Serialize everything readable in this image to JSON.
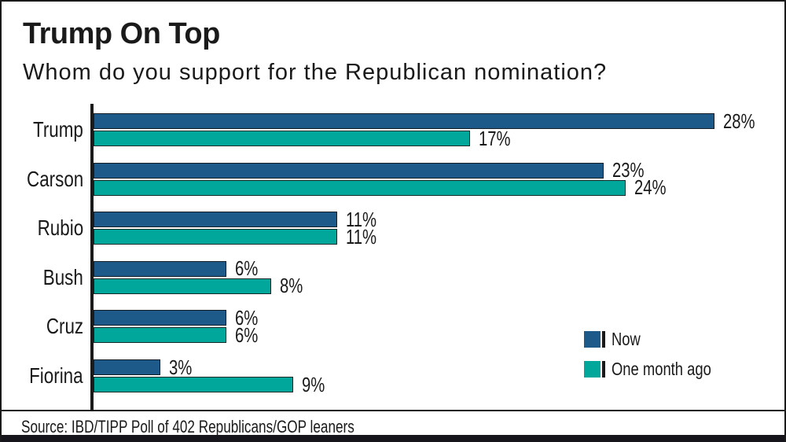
{
  "header": {
    "title": "Trump On Top",
    "subtitle": "Whom do you support for the Republican nomination?"
  },
  "source": "Source: IBD/TIPP Poll of 402 Republicans/GOP leaners",
  "colors": {
    "now": "#1d5a8a",
    "one_month_ago": "#00a79a",
    "text": "#1a1a1a",
    "frame": "#1a1a1a",
    "bottom_bar": "#15151b"
  },
  "chart_data": {
    "type": "bar",
    "orientation": "horizontal",
    "title": "Trump On Top",
    "subtitle": "Whom do you support for the Republican nomination?",
    "categories": [
      "Trump",
      "Carson",
      "Rubio",
      "Bush",
      "Cruz",
      "Fiorina"
    ],
    "series": [
      {
        "name": "Now",
        "color": "#1d5a8a",
        "values": [
          28,
          23,
          11,
          6,
          6,
          3
        ]
      },
      {
        "name": "One month ago",
        "color": "#00a79a",
        "values": [
          17,
          24,
          11,
          8,
          6,
          9
        ]
      }
    ],
    "value_suffix": "%",
    "xlim": [
      0,
      30
    ],
    "grid": false,
    "legend_position": "bottom-right"
  }
}
